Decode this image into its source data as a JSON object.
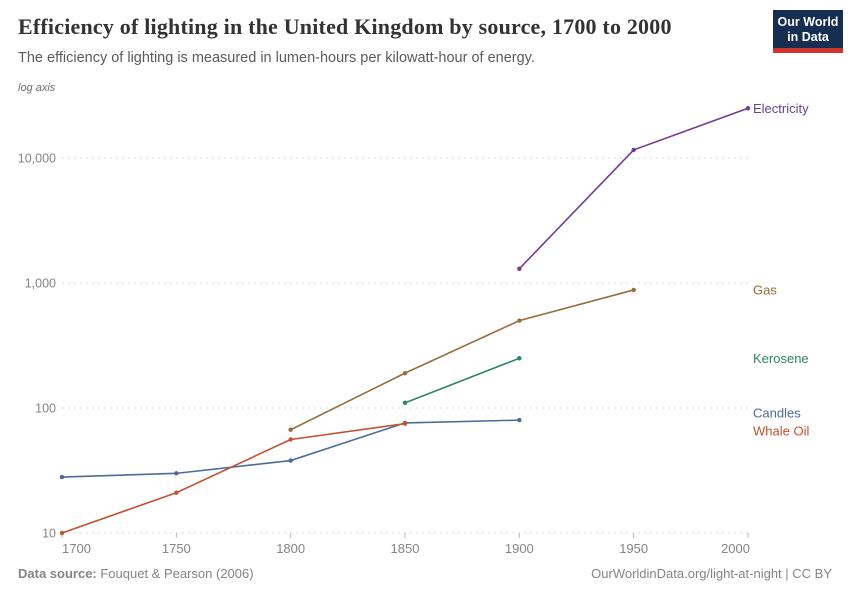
{
  "header": {
    "title": "Efficiency of lighting in the United Kingdom by source, 1700 to 2000",
    "subtitle": "The efficiency of lighting is measured in lumen-hours per kilowatt-hour of energy.",
    "logo": {
      "line1": "Our World",
      "line2": "in Data"
    }
  },
  "chart_data": {
    "type": "line",
    "title": "Efficiency of lighting in the United Kingdom by source, 1700 to 2000",
    "ylabel": "lumen-hours per kilowatt-hour of energy",
    "xlabel": "",
    "log_axis_label": "log axis",
    "y_scale": "log",
    "grid": "horizontal-dashed",
    "legend_position": "end-of-line-labels-right",
    "xlim": [
      1700,
      2000
    ],
    "ylim": [
      10,
      29000
    ],
    "x_ticks": [
      {
        "value": 1700,
        "label": "1700"
      },
      {
        "value": 1750,
        "label": "1750"
      },
      {
        "value": 1800,
        "label": "1800"
      },
      {
        "value": 1850,
        "label": "1850"
      },
      {
        "value": 1900,
        "label": "1900"
      },
      {
        "value": 1950,
        "label": "1950"
      },
      {
        "value": 2000,
        "label": "2000"
      }
    ],
    "y_ticks": [
      {
        "value": 10,
        "label": "10"
      },
      {
        "value": 100,
        "label": "100"
      },
      {
        "value": 1000,
        "label": "1,000"
      },
      {
        "value": 10000,
        "label": "10,000"
      }
    ],
    "series": [
      {
        "name": "Electricity",
        "color": "#6d3e91",
        "points": [
          [
            1900,
            1300
          ],
          [
            1950,
            11600
          ],
          [
            2000,
            25000
          ]
        ]
      },
      {
        "name": "Gas",
        "color": "#996d39",
        "points": [
          [
            1800,
            67
          ],
          [
            1850,
            190
          ],
          [
            1900,
            500
          ],
          [
            1950,
            880
          ]
        ]
      },
      {
        "name": "Kerosene",
        "color": "#2c8465",
        "points": [
          [
            1850,
            110
          ],
          [
            1900,
            250
          ]
        ]
      },
      {
        "name": "Candles",
        "color": "#4c6a9c",
        "points": [
          [
            1700,
            28
          ],
          [
            1750,
            30
          ],
          [
            1800,
            38
          ],
          [
            1850,
            76
          ],
          [
            1900,
            80
          ]
        ]
      },
      {
        "name": "Whale Oil",
        "color": "#c3512f",
        "points": [
          [
            1700,
            10
          ],
          [
            1750,
            21
          ],
          [
            1800,
            56
          ],
          [
            1850,
            75
          ]
        ]
      }
    ]
  },
  "footer": {
    "source_label": "Data source:",
    "source_value": " Fouquet & Pearson (2006)",
    "link": "OurWorldinData.org/light-at-night | CC BY"
  }
}
